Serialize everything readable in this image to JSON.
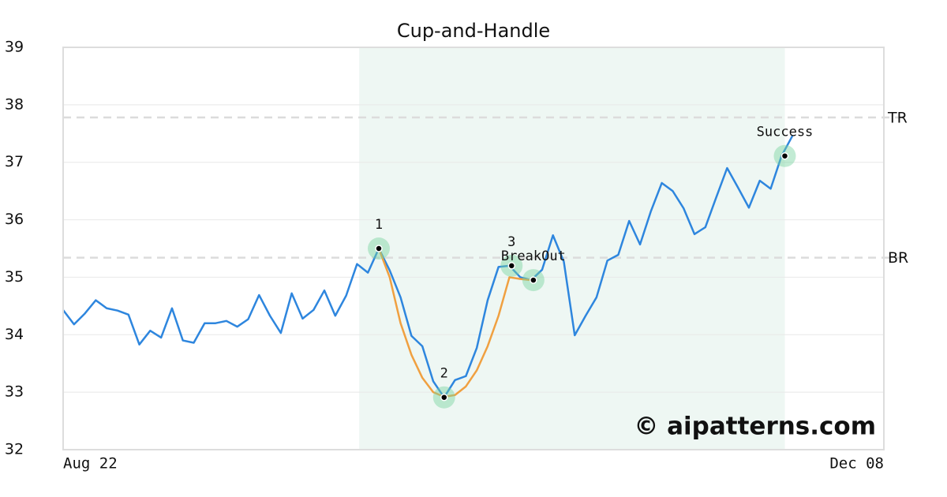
{
  "chart_data": {
    "type": "line",
    "title": "Cup-and-Handle",
    "xlim": [
      0,
      75.4
    ],
    "xticks": [
      {
        "value": 0,
        "label": "Aug 22"
      },
      {
        "value": 75.4,
        "label": "Dec 08"
      }
    ],
    "ylim": [
      32,
      39
    ],
    "yticks": [
      32,
      33,
      34,
      35,
      36,
      37,
      38,
      39
    ],
    "grid": true,
    "shade_x": [
      27.2,
      66.3
    ],
    "shade_color": "#eef7f3",
    "series": [
      {
        "color": "#2e86de",
        "values": [
          34.43,
          34.18,
          34.37,
          34.6,
          34.46,
          34.42,
          34.35,
          33.83,
          34.07,
          33.95,
          34.46,
          33.9,
          33.86,
          34.2,
          34.2,
          34.24,
          34.14,
          34.27,
          34.69,
          34.33,
          34.03,
          34.72,
          34.28,
          34.43,
          34.77,
          34.33,
          34.68,
          35.23,
          35.08,
          35.5,
          35.12,
          34.65,
          33.98,
          33.8,
          33.19,
          32.91,
          33.21,
          33.28,
          33.77,
          34.6,
          35.18,
          35.2,
          35.0,
          34.95,
          35.13,
          35.73,
          35.27,
          33.99,
          34.33,
          34.65,
          35.29,
          35.39,
          35.98,
          35.57,
          36.15,
          36.64,
          36.5,
          36.2,
          35.75,
          35.87,
          36.39,
          36.9,
          36.56,
          36.21,
          36.68,
          36.54,
          37.11,
          37.46
        ]
      },
      {
        "color": "#f0a040",
        "values": [
          null,
          null,
          null,
          null,
          null,
          null,
          null,
          null,
          null,
          null,
          null,
          null,
          null,
          null,
          null,
          null,
          null,
          null,
          null,
          null,
          null,
          null,
          null,
          null,
          null,
          null,
          null,
          null,
          null,
          35.5,
          35.0,
          34.2,
          33.65,
          33.25,
          33.0,
          32.92,
          32.95,
          33.1,
          33.38,
          33.8,
          34.33,
          35.0,
          34.97,
          34.95,
          null,
          null,
          null,
          null,
          null,
          null,
          null,
          null,
          null,
          null,
          null,
          null,
          null,
          null,
          null,
          null,
          null,
          null,
          null,
          null,
          null,
          null,
          null,
          null
        ]
      }
    ],
    "levels": [
      {
        "label": "TR",
        "value": 37.78
      },
      {
        "label": "BR",
        "value": 35.34
      }
    ],
    "points": [
      {
        "label": "1",
        "x": 29,
        "y": 35.5
      },
      {
        "label": "2",
        "x": 35,
        "y": 32.91
      },
      {
        "label": "3",
        "x": 41.2,
        "y": 35.2
      },
      {
        "label": "BreakOut",
        "x": 43.2,
        "y": 34.95
      },
      {
        "label": "Success",
        "x": 66.3,
        "y": 37.11
      }
    ],
    "watermark": "© aipatterns.com"
  }
}
